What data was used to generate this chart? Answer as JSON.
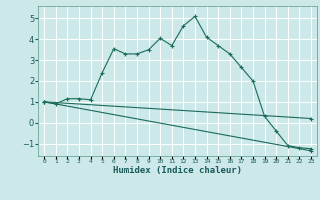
{
  "xlabel": "Humidex (Indice chaleur)",
  "ylabel": "",
  "background_color": "#cce8e8",
  "grid_color": "#ffffff",
  "line_color": "#1a6b5a",
  "xlim": [
    -0.5,
    23.5
  ],
  "ylim": [
    -1.6,
    5.6
  ],
  "xticks": [
    0,
    1,
    2,
    3,
    4,
    5,
    6,
    7,
    8,
    9,
    10,
    11,
    12,
    13,
    14,
    15,
    16,
    17,
    18,
    19,
    20,
    21,
    22,
    23
  ],
  "yticks": [
    -1,
    0,
    1,
    2,
    3,
    4,
    5
  ],
  "curve1_x": [
    0,
    1,
    2,
    3,
    4,
    5,
    6,
    7,
    8,
    9,
    10,
    11,
    12,
    13,
    14,
    15,
    16,
    17,
    18,
    19,
    20,
    21,
    22,
    23
  ],
  "curve1_y": [
    1.0,
    0.9,
    1.15,
    1.15,
    1.1,
    2.4,
    3.55,
    3.3,
    3.3,
    3.5,
    4.05,
    3.7,
    4.65,
    5.1,
    4.1,
    3.7,
    3.3,
    2.65,
    2.0,
    0.3,
    -0.4,
    -1.1,
    -1.2,
    -1.25
  ],
  "curve2_x": [
    0,
    23
  ],
  "curve2_y": [
    1.0,
    0.2
  ],
  "curve3_x": [
    0,
    23
  ],
  "curve3_y": [
    1.0,
    -1.35
  ]
}
